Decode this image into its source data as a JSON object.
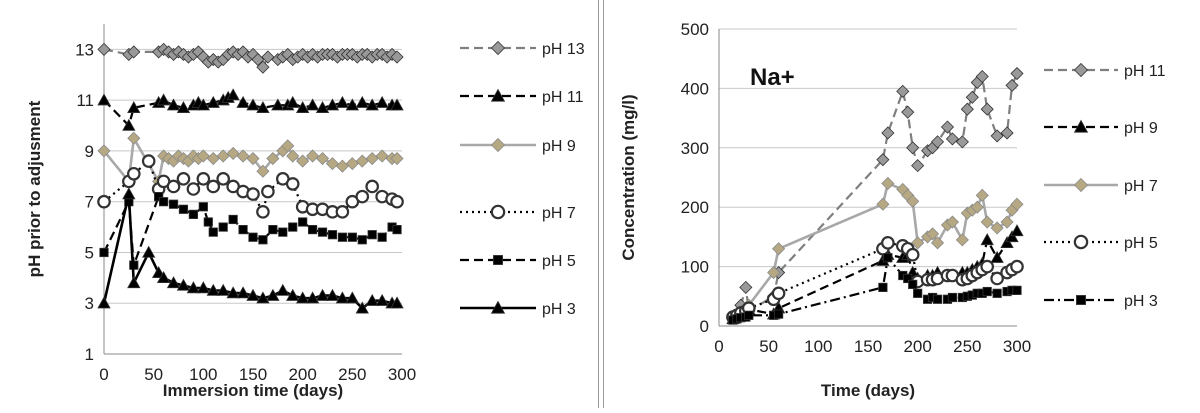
{
  "chart_data": [
    {
      "type": "line",
      "xlabel": "Immersion time (days)",
      "ylabel": "pH prior to adjusment",
      "xlim": [
        0,
        300
      ],
      "ylim": [
        1,
        14
      ],
      "xticks": [
        0,
        50,
        100,
        150,
        200,
        250,
        300
      ],
      "yticks": [
        1,
        3,
        5,
        7,
        9,
        11,
        13
      ],
      "grid": "horizontal",
      "legend_position": "right",
      "series": [
        {
          "name": "pH 13",
          "color": "#7f7f7f",
          "marker": "diamond",
          "marker_fill": "#999999",
          "line": "dashed",
          "x": [
            0,
            25,
            30,
            55,
            60,
            65,
            70,
            75,
            80,
            85,
            90,
            95,
            100,
            105,
            110,
            115,
            120,
            125,
            130,
            135,
            140,
            145,
            150,
            155,
            160,
            165,
            175,
            180,
            185,
            190,
            195,
            200,
            205,
            210,
            215,
            220,
            225,
            230,
            235,
            240,
            245,
            250,
            255,
            260,
            265,
            270,
            275,
            280,
            285,
            290,
            295
          ],
          "y": [
            13,
            12.8,
            12.9,
            12.9,
            13,
            12.9,
            12.8,
            12.9,
            12.8,
            12.7,
            12.8,
            12.9,
            12.7,
            12.5,
            12.6,
            12.5,
            12.6,
            12.8,
            12.9,
            12.8,
            12.9,
            12.7,
            12.8,
            12.6,
            12.3,
            12.7,
            12.6,
            12.7,
            12.8,
            12.6,
            12.7,
            12.8,
            12.7,
            12.8,
            12.7,
            12.8,
            12.8,
            12.8,
            12.7,
            12.8,
            12.8,
            12.8,
            12.7,
            12.8,
            12.8,
            12.7,
            12.8,
            12.8,
            12.7,
            12.8,
            12.7
          ]
        },
        {
          "name": "pH 11",
          "color": "#000000",
          "marker": "triangle",
          "marker_fill": "#000000",
          "line": "dashed",
          "x": [
            0,
            25,
            30,
            55,
            60,
            70,
            80,
            90,
            95,
            100,
            110,
            120,
            125,
            130,
            140,
            150,
            160,
            175,
            185,
            190,
            200,
            210,
            220,
            230,
            240,
            250,
            260,
            270,
            280,
            290,
            295
          ],
          "y": [
            11,
            10,
            10.7,
            10.9,
            11,
            10.8,
            10.7,
            10.8,
            10.9,
            10.8,
            10.9,
            11,
            11.1,
            11.2,
            10.9,
            10.8,
            10.7,
            10.8,
            10.8,
            10.9,
            10.7,
            10.8,
            10.7,
            10.8,
            10.9,
            10.8,
            10.9,
            10.8,
            10.9,
            10.8,
            10.8
          ]
        },
        {
          "name": "pH 9",
          "color": "#a8a8a8",
          "marker": "diamond",
          "marker_fill": "#b5a882",
          "line": "solid",
          "x": [
            0,
            25,
            30,
            55,
            60,
            65,
            70,
            75,
            80,
            85,
            90,
            95,
            100,
            110,
            120,
            130,
            140,
            150,
            160,
            170,
            180,
            185,
            190,
            200,
            210,
            220,
            230,
            240,
            250,
            260,
            270,
            280,
            290,
            295
          ],
          "y": [
            9,
            7.8,
            9.5,
            7.8,
            8.8,
            8.7,
            8.6,
            8.8,
            8.7,
            8.6,
            8.8,
            8.7,
            8.8,
            8.7,
            8.8,
            8.9,
            8.8,
            8.7,
            8.2,
            8.7,
            9,
            9.2,
            8.8,
            8.6,
            8.8,
            8.7,
            8.5,
            8.4,
            8.5,
            8.6,
            8.7,
            8.8,
            8.7,
            8.7
          ]
        },
        {
          "name": "pH 7",
          "color": "#000000",
          "marker": "circle",
          "marker_fill": "#ffffff",
          "line": "dotted",
          "x": [
            0,
            25,
            30,
            45,
            55,
            60,
            70,
            80,
            90,
            100,
            110,
            120,
            130,
            140,
            150,
            160,
            165,
            180,
            190,
            200,
            210,
            220,
            230,
            240,
            250,
            260,
            270,
            280,
            290,
            295
          ],
          "y": [
            7,
            7.8,
            8.1,
            8.6,
            7.5,
            7.8,
            7.6,
            7.9,
            7.5,
            7.9,
            7.6,
            7.9,
            7.6,
            7.4,
            7.3,
            6.6,
            7.4,
            7.9,
            7.7,
            6.8,
            6.7,
            6.7,
            6.6,
            6.6,
            7,
            7.2,
            7.6,
            7.2,
            7.1,
            7
          ]
        },
        {
          "name": "pH 5",
          "color": "#000000",
          "marker": "square",
          "marker_fill": "#000000",
          "line": "dashed",
          "x": [
            0,
            25,
            30,
            55,
            60,
            70,
            80,
            90,
            100,
            105,
            110,
            120,
            130,
            140,
            150,
            160,
            170,
            180,
            190,
            200,
            210,
            220,
            230,
            240,
            250,
            260,
            270,
            280,
            290,
            295
          ],
          "y": [
            5,
            7,
            4.5,
            7.2,
            7,
            6.9,
            6.7,
            6.5,
            6.8,
            6.2,
            5.8,
            6,
            6.3,
            5.9,
            5.6,
            5.5,
            5.9,
            5.8,
            6,
            6.2,
            5.9,
            5.8,
            5.7,
            5.6,
            5.6,
            5.5,
            5.7,
            5.6,
            6,
            5.9
          ]
        },
        {
          "name": "pH 3",
          "color": "#000000",
          "marker": "triangle",
          "marker_fill": "#000000",
          "line": "solid",
          "x": [
            0,
            25,
            30,
            45,
            55,
            60,
            70,
            80,
            90,
            100,
            110,
            120,
            130,
            140,
            150,
            160,
            170,
            180,
            190,
            200,
            210,
            220,
            230,
            240,
            250,
            260,
            270,
            280,
            290,
            295
          ],
          "y": [
            3,
            7.3,
            3.8,
            5,
            4.2,
            4,
            3.8,
            3.7,
            3.6,
            3.6,
            3.5,
            3.5,
            3.4,
            3.4,
            3.3,
            3.2,
            3.3,
            3.5,
            3.3,
            3.2,
            3.2,
            3.3,
            3.3,
            3.2,
            3.2,
            2.8,
            3.1,
            3.1,
            3,
            3
          ]
        }
      ]
    },
    {
      "type": "line",
      "annotation": "Na+",
      "xlabel": "Time (days)",
      "ylabel": "Concentration (mg/l)",
      "xlim": [
        0,
        300
      ],
      "ylim": [
        0,
        500
      ],
      "xticks": [
        0,
        50,
        100,
        150,
        200,
        250,
        300
      ],
      "yticks": [
        0,
        100,
        200,
        300,
        400,
        500
      ],
      "grid": "horizontal",
      "legend_position": "right",
      "series": [
        {
          "name": "pH 11",
          "color": "#7f7f7f",
          "marker": "diamond",
          "marker_fill": "#999999",
          "line": "dashed",
          "x": [
            14,
            18,
            22,
            27,
            30,
            55,
            60,
            165,
            170,
            185,
            190,
            195,
            200,
            210,
            215,
            220,
            230,
            235,
            245,
            250,
            255,
            260,
            265,
            270,
            280,
            290,
            295,
            300
          ],
          "y": [
            15,
            20,
            35,
            65,
            25,
            50,
            90,
            280,
            325,
            395,
            360,
            300,
            270,
            295,
            300,
            310,
            335,
            315,
            310,
            365,
            385,
            410,
            420,
            365,
            320,
            325,
            405,
            425
          ]
        },
        {
          "name": "pH 9",
          "color": "#000000",
          "marker": "triangle",
          "marker_fill": "#000000",
          "line": "dashed",
          "x": [
            14,
            18,
            22,
            27,
            30,
            55,
            60,
            165,
            170,
            185,
            190,
            195,
            200,
            210,
            215,
            220,
            230,
            235,
            245,
            250,
            255,
            260,
            265,
            270,
            280,
            290,
            295,
            300
          ],
          "y": [
            12,
            15,
            18,
            20,
            28,
            20,
            30,
            110,
            120,
            115,
            120,
            90,
            80,
            85,
            85,
            90,
            85,
            85,
            90,
            90,
            95,
            100,
            105,
            145,
            115,
            140,
            150,
            160
          ]
        },
        {
          "name": "pH 7",
          "color": "#a8a8a8",
          "marker": "diamond",
          "marker_fill": "#b5a882",
          "line": "solid",
          "x": [
            14,
            18,
            22,
            27,
            30,
            55,
            60,
            165,
            170,
            185,
            190,
            195,
            200,
            210,
            215,
            220,
            230,
            235,
            245,
            250,
            255,
            260,
            265,
            270,
            280,
            290,
            295,
            300
          ],
          "y": [
            15,
            20,
            25,
            30,
            35,
            90,
            130,
            205,
            240,
            230,
            220,
            210,
            140,
            150,
            155,
            140,
            170,
            175,
            145,
            190,
            195,
            200,
            220,
            175,
            165,
            175,
            195,
            205
          ]
        },
        {
          "name": "pH 5",
          "color": "#000000",
          "marker": "circle",
          "marker_fill": "#ffffff",
          "line": "dotted",
          "x": [
            14,
            18,
            22,
            27,
            30,
            55,
            60,
            165,
            170,
            185,
            190,
            195,
            200,
            210,
            215,
            220,
            230,
            235,
            245,
            250,
            255,
            260,
            265,
            270,
            280,
            290,
            295,
            300
          ],
          "y": [
            15,
            18,
            22,
            25,
            30,
            45,
            55,
            130,
            140,
            135,
            130,
            120,
            75,
            78,
            78,
            80,
            85,
            85,
            78,
            80,
            85,
            90,
            95,
            100,
            80,
            90,
            95,
            100
          ]
        },
        {
          "name": "pH 3",
          "color": "#000000",
          "marker": "square",
          "marker_fill": "#000000",
          "line": "dashdot",
          "x": [
            14,
            18,
            22,
            27,
            30,
            55,
            60,
            165,
            170,
            185,
            190,
            195,
            200,
            210,
            215,
            220,
            230,
            235,
            245,
            250,
            255,
            260,
            265,
            270,
            280,
            290,
            295,
            300
          ],
          "y": [
            10,
            12,
            14,
            15,
            18,
            18,
            20,
            65,
            115,
            85,
            80,
            70,
            55,
            45,
            48,
            45,
            45,
            48,
            48,
            50,
            52,
            55,
            55,
            58,
            55,
            58,
            60,
            60
          ]
        }
      ]
    }
  ]
}
